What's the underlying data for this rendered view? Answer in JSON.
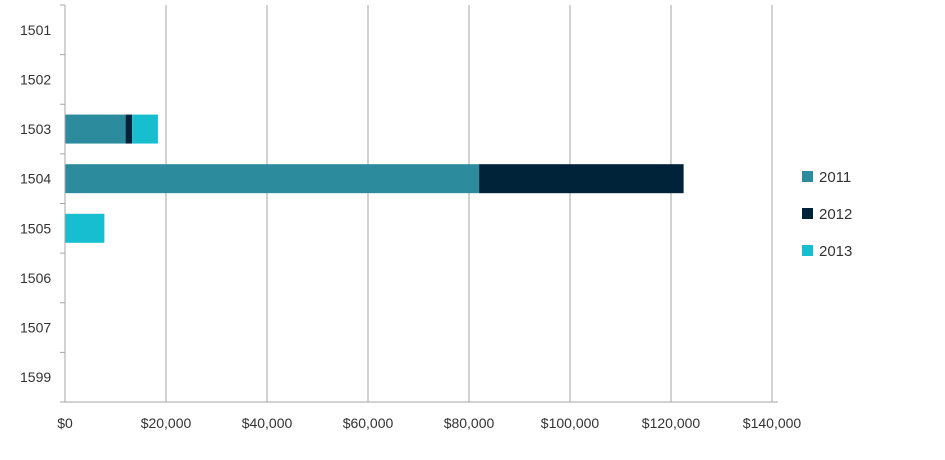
{
  "chart_data": {
    "type": "bar",
    "orientation": "horizontal",
    "stacked": true,
    "categories": [
      "1501",
      "1502",
      "1503",
      "1504",
      "1505",
      "1506",
      "1507",
      "1599"
    ],
    "series": [
      {
        "name": "2011",
        "color": "#2c8c9e",
        "values": [
          0,
          0,
          12000,
          82000,
          0,
          0,
          0,
          0
        ]
      },
      {
        "name": "2012",
        "color": "#002339",
        "values": [
          0,
          0,
          1300,
          40500,
          0,
          0,
          0,
          0
        ]
      },
      {
        "name": "2013",
        "color": "#17becf",
        "values": [
          0,
          0,
          5100,
          0,
          7800,
          0,
          0,
          0
        ]
      }
    ],
    "x_ticks": [
      "$0",
      "$20,000",
      "$40,000",
      "$60,000",
      "$80,000",
      "$100,000",
      "$120,000",
      "$140,000"
    ],
    "xlim": [
      0,
      140000
    ],
    "grid": "vertical",
    "legend_position": "right"
  }
}
